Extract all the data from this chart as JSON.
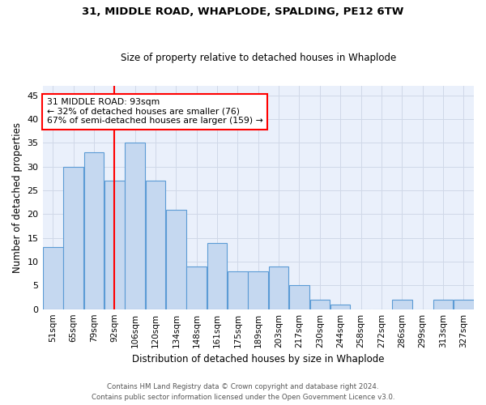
{
  "title1": "31, MIDDLE ROAD, WHAPLODE, SPALDING, PE12 6TW",
  "title2": "Size of property relative to detached houses in Whaplode",
  "xlabel": "Distribution of detached houses by size in Whaplode",
  "ylabel": "Number of detached properties",
  "categories": [
    "51sqm",
    "65sqm",
    "79sqm",
    "92sqm",
    "106sqm",
    "120sqm",
    "134sqm",
    "148sqm",
    "161sqm",
    "175sqm",
    "189sqm",
    "203sqm",
    "217sqm",
    "230sqm",
    "244sqm",
    "258sqm",
    "272sqm",
    "286sqm",
    "299sqm",
    "313sqm",
    "327sqm"
  ],
  "values": [
    13,
    30,
    33,
    27,
    35,
    27,
    21,
    9,
    14,
    8,
    8,
    9,
    5,
    2,
    1,
    0,
    0,
    2,
    0,
    2,
    2
  ],
  "bar_color": "#c5d8f0",
  "bar_edge_color": "#5b9bd5",
  "grid_color": "#d0d8e8",
  "bg_color": "#eaf0fb",
  "vline_x": 3.0,
  "vline_color": "red",
  "annotation_text": "31 MIDDLE ROAD: 93sqm\n← 32% of detached houses are smaller (76)\n67% of semi-detached houses are larger (159) →",
  "annotation_box_color": "white",
  "annotation_box_edge": "red",
  "ylim": [
    0,
    47
  ],
  "yticks": [
    0,
    5,
    10,
    15,
    20,
    25,
    30,
    35,
    40,
    45
  ],
  "footer1": "Contains HM Land Registry data © Crown copyright and database right 2024.",
  "footer2": "Contains public sector information licensed under the Open Government Licence v3.0."
}
